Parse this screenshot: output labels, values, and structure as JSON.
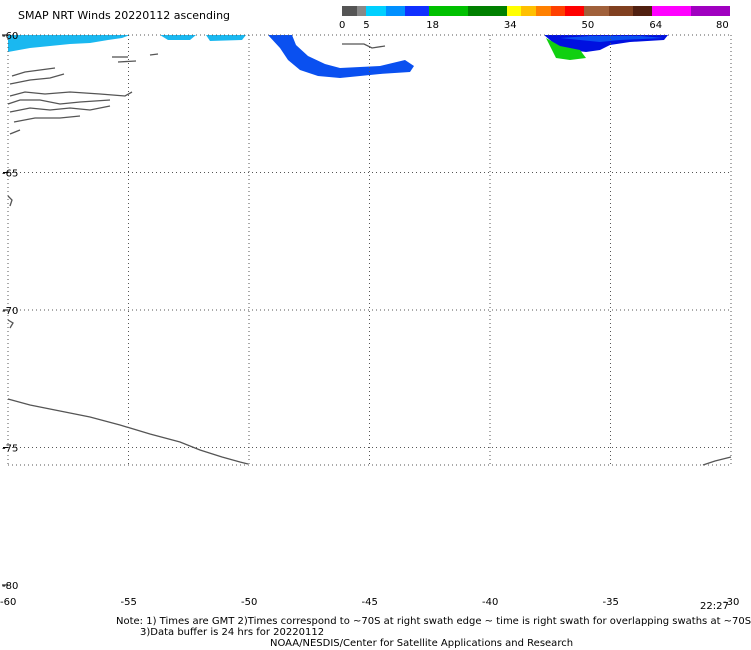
{
  "title": "SMAP NRT Winds 20220112 ascending",
  "colorbar": {
    "labels": [
      "0",
      "5",
      "18",
      "34",
      "50",
      "64",
      "80"
    ],
    "segments": [
      {
        "from": 0,
        "to": 3,
        "color": "#555555"
      },
      {
        "from": 3,
        "to": 5,
        "color": "#888888"
      },
      {
        "from": 5,
        "to": 9,
        "color": "#00d0ff"
      },
      {
        "from": 9,
        "to": 13,
        "color": "#0090ff"
      },
      {
        "from": 13,
        "to": 18,
        "color": "#1030ff"
      },
      {
        "from": 18,
        "to": 26,
        "color": "#00c000"
      },
      {
        "from": 26,
        "to": 34,
        "color": "#008000"
      },
      {
        "from": 34,
        "to": 37,
        "color": "#ffff00"
      },
      {
        "from": 37,
        "to": 40,
        "color": "#ffc000"
      },
      {
        "from": 40,
        "to": 43,
        "color": "#ff8000"
      },
      {
        "from": 43,
        "to": 46,
        "color": "#ff4000"
      },
      {
        "from": 46,
        "to": 50,
        "color": "#ff0000"
      },
      {
        "from": 50,
        "to": 55,
        "color": "#a0603a"
      },
      {
        "from": 55,
        "to": 60,
        "color": "#804020"
      },
      {
        "from": 60,
        "to": 64,
        "color": "#502010"
      },
      {
        "from": 64,
        "to": 72,
        "color": "#ff00ff"
      },
      {
        "from": 72,
        "to": 80,
        "color": "#a000c0"
      }
    ]
  },
  "map": {
    "lat_labels": [
      "-60",
      "-65",
      "-70",
      "-75",
      "-80"
    ],
    "lon_labels": [
      "-60",
      "-55",
      "-50",
      "-45",
      "-40",
      "-35",
      "-30"
    ],
    "time_label": "22:27",
    "colors": {
      "coast": "#555555",
      "grid": "#555555",
      "light_blue": "#1ab8f0",
      "mid_blue": "#0a50f0",
      "dark_blue": "#0010e0",
      "green": "#10d010"
    }
  },
  "notes": {
    "line1": "Note: 1) Times are GMT 2)Times correspond to ~70S at right swath edge ~ time is right swath for overlapping swaths at ~70S",
    "line2": "3)Data buffer is 24 hrs for 20220112",
    "line3": "NOAA/NESDIS/Center for Satellite Applications and Research"
  }
}
